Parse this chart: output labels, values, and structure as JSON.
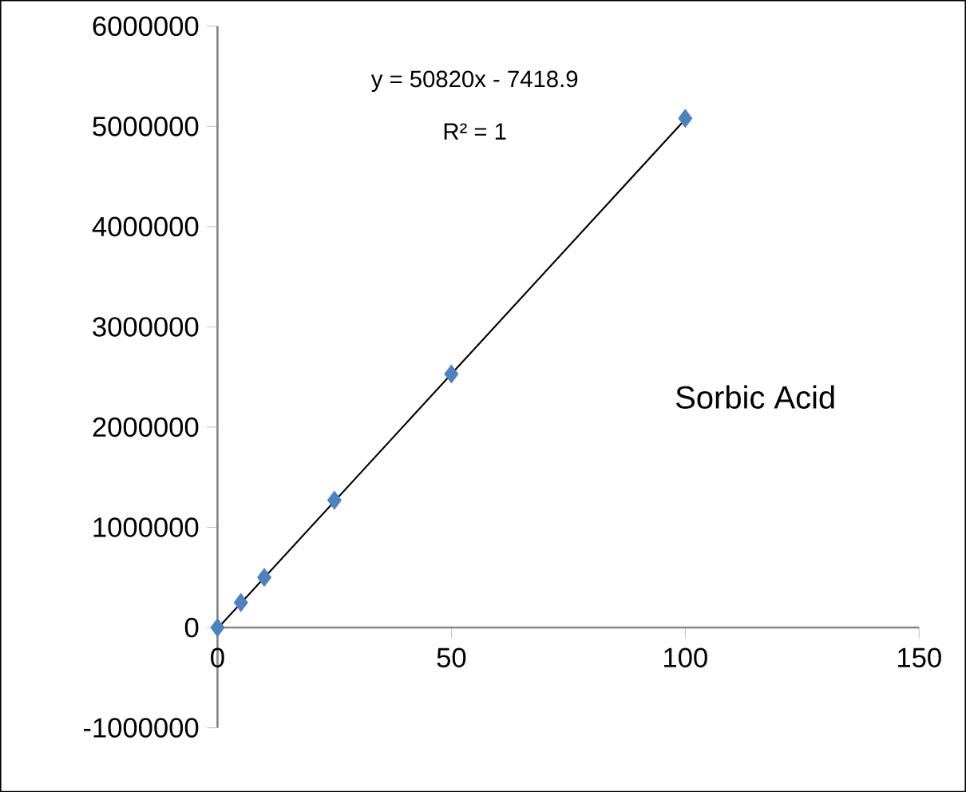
{
  "chart_data": {
    "type": "scatter",
    "title": "Sorbic Acid",
    "series": [
      {
        "color": "#4f81bd",
        "marker": "diamond",
        "x": [
          0,
          5,
          10,
          25,
          50,
          100
        ],
        "values": [
          0,
          250000,
          500000,
          1270000,
          2530000,
          5080000
        ]
      },
      {
        "type": "line",
        "color": "#000000",
        "marker": "none",
        "x": [
          0,
          100
        ],
        "values": [
          -10000,
          5070000
        ]
      }
    ],
    "annotations": [
      "y = 50820x - 7418.9",
      "R² = 1"
    ],
    "xlim": [
      0,
      150
    ],
    "xticks": [
      0,
      50,
      100,
      150
    ],
    "ylim": [
      -1000000,
      6000000
    ],
    "yticks": [
      -1000000,
      0,
      1000000,
      2000000,
      3000000,
      4000000,
      5000000,
      6000000
    ],
    "grid": false
  }
}
